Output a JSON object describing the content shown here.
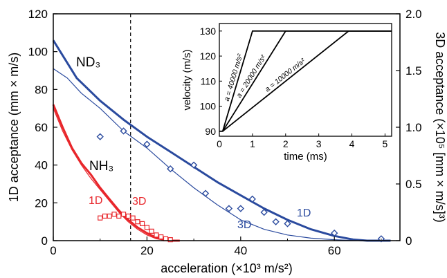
{
  "chart_data": [
    {
      "type": "line",
      "xlabel": "acceleration (×10³ m/s²)",
      "ylabel": "1D acceptance (mm × m/s)",
      "y2label": "3D acceptance (×10⁵ [mm × m/s]³)",
      "xlim": [
        0,
        74
      ],
      "ylim": [
        0,
        120
      ],
      "y2lim": [
        0,
        2.0
      ],
      "xticks": [
        0,
        20,
        40,
        60
      ],
      "yticks": [
        0,
        20,
        40,
        60,
        80,
        100,
        120
      ],
      "y2ticks": [
        "0",
        "0.5",
        "1.0",
        "1.5",
        "2.0"
      ],
      "vline_x": 16.5,
      "colors": {
        "nd3": "#2a4a9e",
        "nh3": "#e8262b"
      },
      "labels": {
        "nd3": "ND₃",
        "nh3": "NH₃",
        "nd3_1d": "1D",
        "nd3_3d": "3D",
        "nh3_1d": "1D",
        "nh3_3d": "3D"
      },
      "series": [
        {
          "key": "nd3_1d",
          "style": "thick-line",
          "x": [
            0,
            5,
            10,
            15,
            20,
            25,
            30,
            35,
            40,
            45,
            50,
            55,
            60,
            64,
            67,
            70,
            72
          ],
          "y": [
            106,
            86,
            74,
            64,
            55,
            47,
            39,
            31,
            24,
            17,
            11,
            6,
            2.5,
            0.6,
            0,
            0,
            0
          ]
        },
        {
          "key": "nd3_3d",
          "style": "thin-line",
          "x": [
            0,
            3,
            6,
            10,
            15,
            20,
            25,
            30,
            35,
            40,
            45,
            50,
            55,
            60,
            63,
            66,
            70
          ],
          "y": [
            91,
            86,
            78,
            70,
            58,
            49,
            38,
            28,
            19,
            11,
            6,
            3,
            1.3,
            0.5,
            0.2,
            0,
            0
          ]
        },
        {
          "key": "nd3_3d_markers",
          "style": "diamond",
          "x": [
            10,
            15,
            20,
            25,
            30,
            32.5,
            37.5,
            40,
            42.5,
            45,
            47.5,
            50,
            60,
            70
          ],
          "y": [
            55,
            58,
            51,
            38,
            40,
            25,
            17,
            17,
            22,
            15,
            10,
            9,
            4,
            1
          ]
        },
        {
          "key": "nh3_1d",
          "style": "thick-line",
          "x": [
            0,
            2,
            4,
            6,
            8,
            10,
            12,
            14,
            16,
            18,
            20,
            22,
            24,
            25,
            27
          ],
          "y": [
            72,
            60,
            49,
            41,
            35,
            28,
            22,
            16,
            11,
            7,
            4,
            1.5,
            0.3,
            0,
            0
          ]
        },
        {
          "key": "nh3_3d",
          "style": "thin-line",
          "x": [
            0,
            2,
            4,
            6,
            8,
            10,
            12,
            14,
            16,
            18,
            20,
            22,
            24,
            25
          ],
          "y": [
            70,
            58,
            48,
            40,
            33,
            27,
            21,
            15,
            10,
            6,
            3,
            1,
            0.2,
            0
          ]
        },
        {
          "key": "nh3_3d_markers",
          "style": "square",
          "x": [
            10,
            11,
            12,
            13,
            14,
            15,
            16,
            17,
            18,
            19,
            20,
            21,
            22,
            23,
            24,
            25
          ],
          "y": [
            12,
            13,
            13,
            14,
            13,
            14,
            13,
            12,
            10,
            9,
            7,
            5,
            3,
            2,
            1,
            0.5
          ]
        }
      ]
    },
    {
      "type": "line",
      "xlabel": "time (ms)",
      "ylabel": "velocity (m/s)",
      "xlim": [
        0,
        5.2
      ],
      "ylim": [
        88,
        133
      ],
      "xticks": [
        0,
        1,
        2,
        3,
        4,
        5
      ],
      "yticks": [
        90,
        100,
        110,
        120,
        130
      ],
      "series": [
        {
          "label": "a = 40000 m/s²",
          "x": [
            0,
            0.1,
            1.0,
            5.2
          ],
          "y": [
            90,
            90,
            130,
            130
          ]
        },
        {
          "label": "a = 20000 m/s²",
          "x": [
            0.1,
            2.0,
            5.2
          ],
          "y": [
            90,
            130,
            130
          ]
        },
        {
          "label": "a = 10000 m/s²",
          "x": [
            0.1,
            3.9,
            5.2
          ],
          "y": [
            90,
            130,
            130
          ]
        }
      ]
    }
  ]
}
